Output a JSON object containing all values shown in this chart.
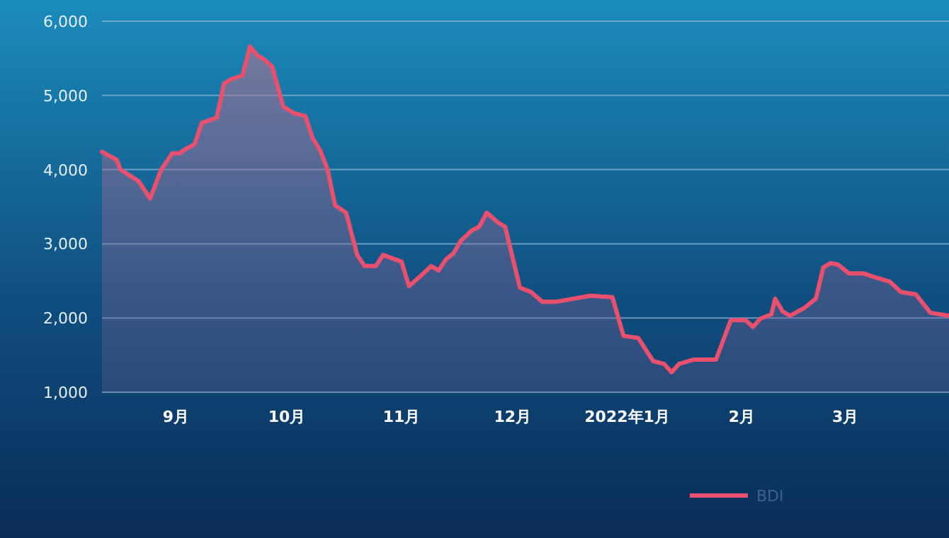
{
  "chart_data": {
    "type": "area",
    "x": [
      "2021-08-12",
      "2021-08-16",
      "2021-08-17",
      "2021-08-22",
      "2021-08-25",
      "2021-08-28",
      "2021-08-31",
      "2021-09-02",
      "2021-09-03",
      "2021-09-06",
      "2021-09-08",
      "2021-09-12",
      "2021-09-14",
      "2021-09-16",
      "2021-09-19",
      "2021-09-21",
      "2021-09-23",
      "2021-09-25",
      "2021-09-27",
      "2021-09-30",
      "2021-10-03",
      "2021-10-06",
      "2021-10-08",
      "2021-10-10",
      "2021-10-12",
      "2021-10-14",
      "2021-10-17",
      "2021-10-20",
      "2021-10-22",
      "2021-10-25",
      "2021-10-27",
      "2021-11-01",
      "2021-11-03",
      "2021-11-06",
      "2021-11-09",
      "2021-11-11",
      "2021-11-13",
      "2021-11-15",
      "2021-11-17",
      "2021-11-20",
      "2021-11-22",
      "2021-11-24",
      "2021-11-27",
      "2021-11-29",
      "2021-12-03",
      "2021-12-06",
      "2021-12-09",
      "2021-12-13",
      "2021-12-22",
      "2021-12-28",
      "2021-12-31",
      "2022-01-04",
      "2022-01-08",
      "2022-01-11",
      "2022-01-13",
      "2022-01-15",
      "2022-01-19",
      "2022-01-25",
      "2022-01-29",
      "2022-02-02",
      "2022-02-04",
      "2022-02-06",
      "2022-02-09",
      "2022-02-10",
      "2022-02-12",
      "2022-02-14",
      "2022-02-18",
      "2022-02-21",
      "2022-02-23",
      "2022-02-25",
      "2022-02-27",
      "2022-03-02",
      "2022-03-06",
      "2022-03-09",
      "2022-03-13",
      "2022-03-16",
      "2022-03-20",
      "2022-03-24",
      "2022-03-29"
    ],
    "series": [
      {
        "name": "BDI",
        "color": "#e8506e",
        "values": [
          4240,
          4130,
          4000,
          3840,
          3610,
          4000,
          4220,
          4220,
          4260,
          4340,
          4630,
          4700,
          5160,
          5220,
          5270,
          5660,
          5540,
          5480,
          5390,
          4850,
          4760,
          4720,
          4420,
          4260,
          4000,
          3520,
          3420,
          2850,
          2700,
          2700,
          2850,
          2760,
          2430,
          2560,
          2700,
          2640,
          2790,
          2870,
          3040,
          3180,
          3230,
          3420,
          3290,
          3230,
          2410,
          2350,
          2220,
          2220,
          2300,
          2280,
          1760,
          1730,
          1420,
          1380,
          1270,
          1380,
          1440,
          1440,
          1970,
          1970,
          1880,
          1990,
          2050,
          2260,
          2090,
          2030,
          2140,
          2260,
          2680,
          2740,
          2720,
          2600,
          2600,
          2550,
          2490,
          2350,
          2320,
          2070,
          2030
        ]
      }
    ],
    "xlim": [
      "2021-08-12",
      "2022-03-29"
    ],
    "xticks": [
      {
        "value": "2021-09-01",
        "label": "9月"
      },
      {
        "value": "2021-10-01",
        "label": "10月"
      },
      {
        "value": "2021-11-01",
        "label": "11月"
      },
      {
        "value": "2021-12-01",
        "label": "12月"
      },
      {
        "value": "2022-01-01",
        "label": "2022年1月"
      },
      {
        "value": "2022-02-01",
        "label": "2月"
      },
      {
        "value": "2022-03-01",
        "label": "3月"
      }
    ],
    "ylim": [
      1000,
      6000
    ],
    "yticks": [
      {
        "value": 1000,
        "label": "1,000"
      },
      {
        "value": 2000,
        "label": "2,000"
      },
      {
        "value": 3000,
        "label": "3,000"
      },
      {
        "value": 4000,
        "label": "4,000"
      },
      {
        "value": 5000,
        "label": "5,000"
      },
      {
        "value": 6000,
        "label": "6,000"
      }
    ],
    "grid": "y",
    "legend": "bottom"
  }
}
